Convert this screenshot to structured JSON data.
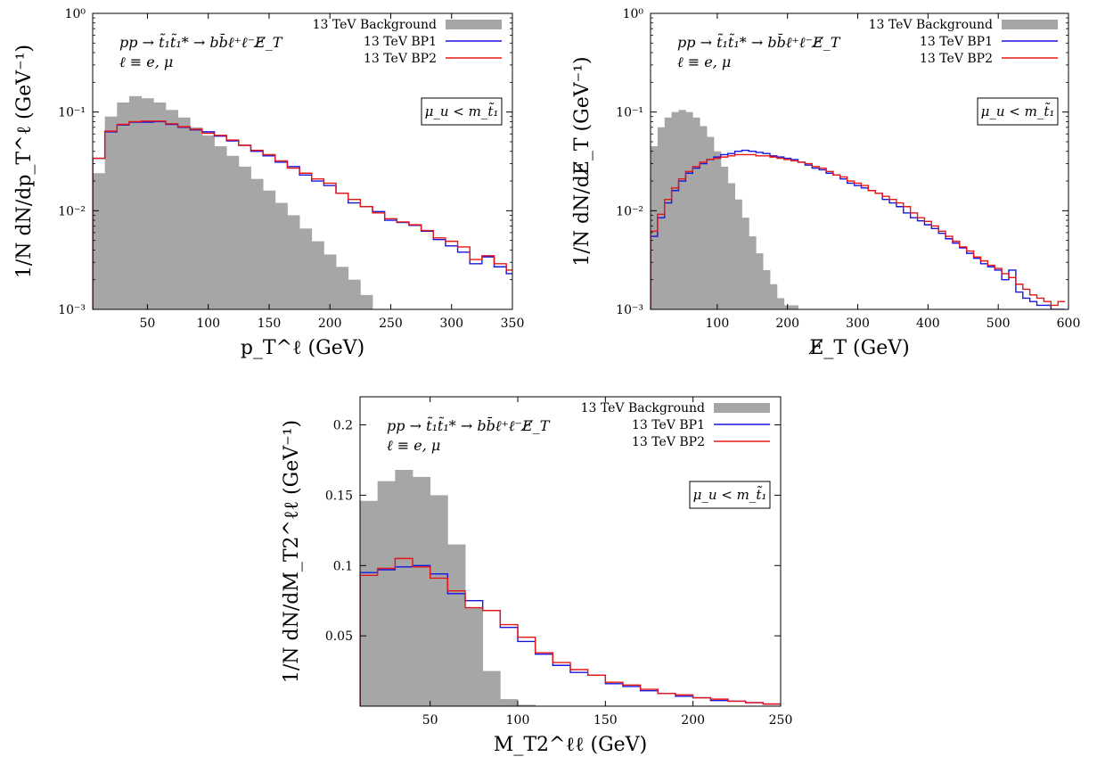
{
  "chart_data": [
    {
      "type": "bar",
      "id": "lepton-pt",
      "title": "",
      "xlabel": "p_T^ℓ (GeV)",
      "ylabel": "1/N dN/dp_T^ℓ (GeV⁻¹)",
      "xlim": [
        5,
        350
      ],
      "ylim": [
        0.001,
        1
      ],
      "yscale": "log",
      "grid": false,
      "legend_position": "top-right",
      "process_lines": [
        "pp → t̃₁t̃₁* → bb̄ℓ⁺ℓ⁻E̸_T",
        "ℓ ≡ e, μ"
      ],
      "condition_label": "μ_u < m_t̃₁",
      "xticks": [
        50,
        100,
        150,
        200,
        250,
        300,
        350
      ],
      "yticks": [
        {
          "v": 0.001,
          "label": "10⁻³"
        },
        {
          "v": 0.01,
          "label": "10⁻²"
        },
        {
          "v": 0.1,
          "label": "10⁻¹"
        },
        {
          "v": 1,
          "label": "10⁰"
        }
      ],
      "series": [
        {
          "name": "13 TeV Background",
          "style": "filled",
          "color": "#a6a6a6",
          "bin_width": 10,
          "x_start": 5,
          "values": [
            0.024,
            0.09,
            0.125,
            0.145,
            0.138,
            0.125,
            0.105,
            0.088,
            0.07,
            0.058,
            0.045,
            0.036,
            0.028,
            0.021,
            0.016,
            0.012,
            0.009,
            0.0066,
            0.0049,
            0.0036,
            0.0027,
            0.002,
            0.0014
          ]
        },
        {
          "name": "13 TeV BP1",
          "style": "step",
          "color": "#1515e0",
          "bin_width": 10,
          "x_start": 5,
          "values": [
            0.034,
            0.063,
            0.074,
            0.079,
            0.079,
            0.08,
            0.075,
            0.07,
            0.066,
            0.063,
            0.057,
            0.051,
            0.046,
            0.04,
            0.036,
            0.031,
            0.028,
            0.023,
            0.02,
            0.018,
            0.015,
            0.012,
            0.011,
            0.0098,
            0.008,
            0.0076,
            0.0071,
            0.0062,
            0.0051,
            0.0044,
            0.0038,
            0.0029,
            0.0034,
            0.0027,
            0.0023
          ]
        },
        {
          "name": "13 TeV BP2",
          "style": "step",
          "color": "#e81515",
          "bin_width": 10,
          "x_start": 5,
          "values": [
            0.034,
            0.064,
            0.075,
            0.08,
            0.081,
            0.081,
            0.076,
            0.071,
            0.067,
            0.061,
            0.058,
            0.052,
            0.046,
            0.041,
            0.037,
            0.032,
            0.027,
            0.024,
            0.021,
            0.019,
            0.015,
            0.013,
            0.011,
            0.0095,
            0.0083,
            0.0077,
            0.0072,
            0.0063,
            0.0053,
            0.0049,
            0.0043,
            0.0032,
            0.0035,
            0.0029,
            0.0025
          ]
        }
      ]
    },
    {
      "type": "bar",
      "id": "missing-et",
      "title": "",
      "xlabel": "E̸_T (GeV)",
      "ylabel": "1/N dN/dE̸_T (GeV⁻¹)",
      "xlim": [
        5,
        600
      ],
      "ylim": [
        0.001,
        1
      ],
      "yscale": "log",
      "grid": false,
      "legend_position": "top-right",
      "process_lines": [
        "pp → t̃₁t̃₁* → bb̄ℓ⁺ℓ⁻E̸_T",
        "ℓ ≡ e, μ"
      ],
      "condition_label": "μ_u < m_t̃₁",
      "xticks": [
        100,
        200,
        300,
        400,
        500,
        600
      ],
      "yticks": [
        {
          "v": 0.001,
          "label": "10⁻³"
        },
        {
          "v": 0.01,
          "label": "10⁻²"
        },
        {
          "v": 0.1,
          "label": "10⁻¹"
        },
        {
          "v": 1,
          "label": "10⁰"
        }
      ],
      "series": [
        {
          "name": "13 TeV Background",
          "style": "filled",
          "color": "#a6a6a6",
          "bin_width": 10,
          "x_start": 5,
          "values": [
            0.045,
            0.07,
            0.088,
            0.1,
            0.105,
            0.1,
            0.088,
            0.072,
            0.056,
            0.04,
            0.028,
            0.019,
            0.013,
            0.0085,
            0.0055,
            0.0037,
            0.0025,
            0.0018,
            0.0013,
            0.0011,
            0.0011,
            0.001,
            0.001
          ]
        },
        {
          "name": "13 TeV BP1",
          "style": "step",
          "color": "#1515e0",
          "bin_width": 10,
          "x_start": 5,
          "values": [
            0.0055,
            0.0085,
            0.012,
            0.016,
            0.02,
            0.024,
            0.027,
            0.03,
            0.033,
            0.035,
            0.037,
            0.038,
            0.04,
            0.041,
            0.04,
            0.039,
            0.038,
            0.036,
            0.035,
            0.034,
            0.033,
            0.031,
            0.029,
            0.027,
            0.026,
            0.024,
            0.023,
            0.021,
            0.019,
            0.018,
            0.017,
            0.016,
            0.015,
            0.013,
            0.012,
            0.011,
            0.0095,
            0.0085,
            0.0079,
            0.0072,
            0.0066,
            0.0059,
            0.0052,
            0.0047,
            0.0042,
            0.0037,
            0.0033,
            0.0029,
            0.0027,
            0.0025,
            0.002,
            0.0025,
            0.0015,
            0.0013,
            0.0012,
            0.0011,
            0.0011,
            0.001,
            0.001
          ]
        },
        {
          "name": "13 TeV BP2",
          "style": "step",
          "color": "#e81515",
          "bin_width": 10,
          "x_start": 5,
          "values": [
            0.0062,
            0.0092,
            0.013,
            0.017,
            0.021,
            0.025,
            0.028,
            0.031,
            0.033,
            0.034,
            0.035,
            0.036,
            0.037,
            0.037,
            0.037,
            0.036,
            0.036,
            0.035,
            0.034,
            0.033,
            0.032,
            0.031,
            0.03,
            0.028,
            0.027,
            0.025,
            0.023,
            0.022,
            0.02,
            0.019,
            0.018,
            0.016,
            0.015,
            0.014,
            0.013,
            0.012,
            0.011,
            0.0095,
            0.0085,
            0.0078,
            0.007,
            0.0062,
            0.0055,
            0.0049,
            0.0043,
            0.0039,
            0.0034,
            0.0031,
            0.0028,
            0.0026,
            0.0023,
            0.0021,
            0.0018,
            0.0016,
            0.0014,
            0.0013,
            0.0012,
            0.0011,
            0.0012
          ]
        }
      ]
    },
    {
      "type": "bar",
      "id": "mt2",
      "title": "",
      "xlabel": "M_T2^ℓℓ (GeV)",
      "ylabel": "1/N dN/dM_T2^ℓℓ (GeV⁻¹)",
      "xlim": [
        10,
        250
      ],
      "ylim": [
        0,
        0.22
      ],
      "yscale": "linear",
      "grid": false,
      "legend_position": "top-right",
      "process_lines": [
        "pp → t̃₁t̃₁* → bb̄ℓ⁺ℓ⁻E̸_T",
        "ℓ ≡ e, μ"
      ],
      "condition_label": "μ_u < m_t̃₁",
      "xticks": [
        50,
        100,
        150,
        200,
        250
      ],
      "yticks": [
        {
          "v": 0.05,
          "label": "0.05"
        },
        {
          "v": 0.1,
          "label": "0.1"
        },
        {
          "v": 0.15,
          "label": "0.15"
        },
        {
          "v": 0.2,
          "label": "0.2"
        }
      ],
      "series": [
        {
          "name": "13 TeV Background",
          "style": "filled",
          "color": "#a6a6a6",
          "bin_width": 10,
          "x_start": 10,
          "values": [
            0.146,
            0.16,
            0.168,
            0.163,
            0.15,
            0.115,
            0.07,
            0.025,
            0.005,
            0.001,
            0.0003
          ]
        },
        {
          "name": "13 TeV BP1",
          "style": "step",
          "color": "#1515e0",
          "bin_width": 10,
          "x_start": 10,
          "values": [
            0.095,
            0.097,
            0.099,
            0.1,
            0.094,
            0.08,
            0.075,
            0.068,
            0.056,
            0.046,
            0.037,
            0.029,
            0.024,
            0.022,
            0.016,
            0.014,
            0.011,
            0.009,
            0.007,
            0.006,
            0.004,
            0.0035,
            0.0025,
            0.0015
          ]
        },
        {
          "name": "13 TeV BP2",
          "style": "step",
          "color": "#e81515",
          "bin_width": 10,
          "x_start": 10,
          "values": [
            0.093,
            0.098,
            0.105,
            0.099,
            0.091,
            0.082,
            0.07,
            0.068,
            0.058,
            0.049,
            0.038,
            0.031,
            0.026,
            0.022,
            0.017,
            0.015,
            0.012,
            0.009,
            0.008,
            0.006,
            0.005,
            0.0035,
            0.0025,
            0.0015
          ]
        }
      ]
    }
  ]
}
